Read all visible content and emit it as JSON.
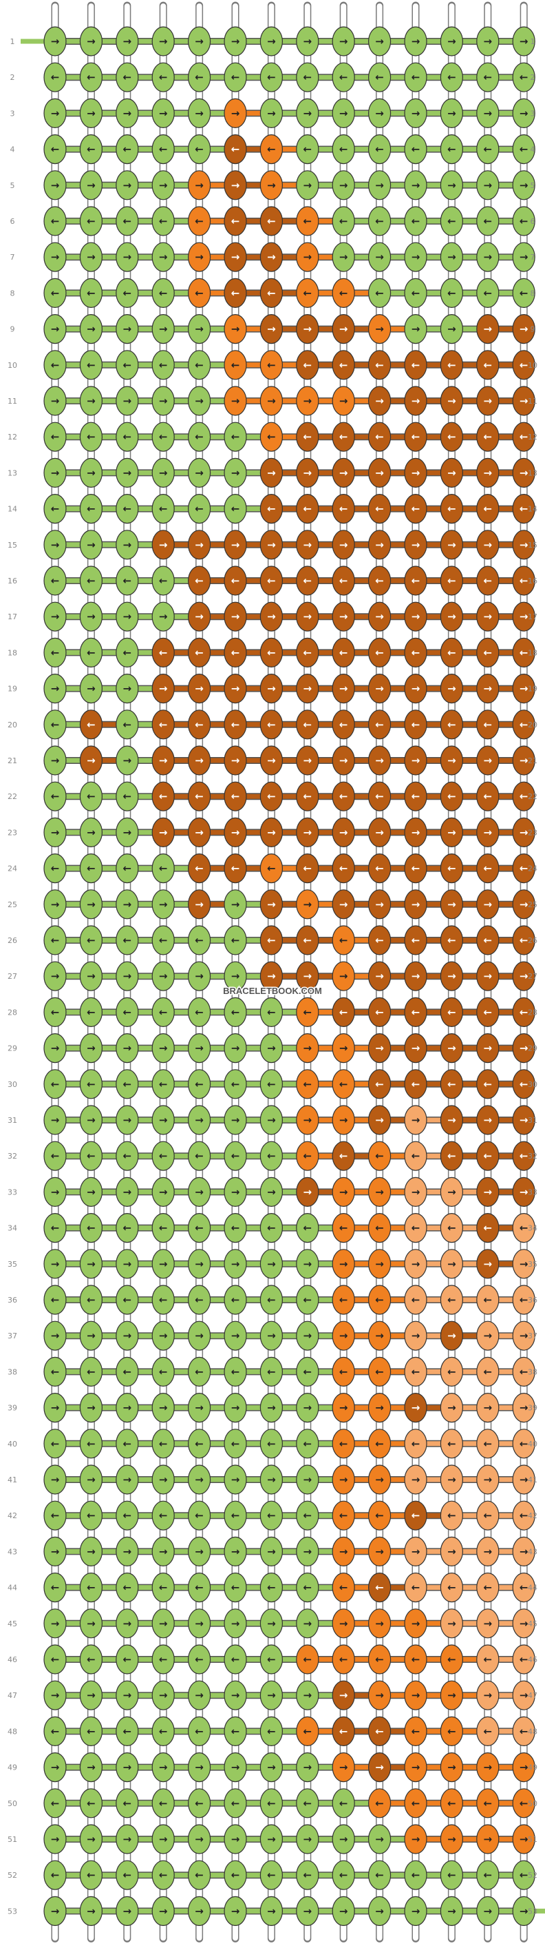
{
  "watermark": "BRACELETBOOK.COM",
  "colors": {
    "A": "#98c860",
    "B": "#f5a86a",
    "C": "#b85c14",
    "D": "#f08020"
  },
  "strand_colors": [
    "A",
    "D",
    "A",
    "A",
    "A",
    "C",
    "A",
    "A",
    "A",
    "A",
    "A",
    "A",
    "A",
    "C"
  ],
  "row_labels": [
    "1",
    "2",
    "3",
    "4",
    "5",
    "6",
    "7",
    "8",
    "9",
    "10",
    "11",
    "12",
    "13",
    "14",
    "15",
    "16",
    "17",
    "18",
    "19",
    "20",
    "21",
    "22",
    "23",
    "24",
    "25",
    "26",
    "27",
    "28",
    "29",
    "30",
    "31",
    "32",
    "33",
    "34",
    "35",
    "36",
    "37",
    "38",
    "39",
    "40",
    "41",
    "42",
    "43",
    "44",
    "45",
    "46",
    "47",
    "48",
    "49",
    "50",
    "51",
    "52",
    "53"
  ],
  "glyphs": {
    "f": "→",
    "b": "←"
  },
  "knot_rows": [
    "AfAfAfAfAfAfAfAfAfAfAfAfAfAf",
    "AbAbAbAbAbAbAbAbAbAbAbAbAbAb",
    "AfAfAfAfAfDfAfAfAfAfAfAfAfAf",
    "AbAbAbAbAbCbDbAbAbAbAbAbAbAb",
    "AfAfAfAfDfCfDfAfAfAfAfAfAfAf",
    "AbAbAbAbDbCbCbDbAbAbAbAbAbAb",
    "AfAfAfAfDfCfCfDfAfAfAfAfAfAf",
    "AbAbAbAbDbCbCbDbDbAbAbAbAbAb",
    "AfAfAfAfAfDfCfCfCfDfAfAfCfCf",
    "AbAbAbAbAbDbDbCbCbCbCbCbCbCb",
    "AfAfAfAfAfDfDfDfDfCfCfCfCfCf",
    "AbAbAbAbAbAbDbCbCbCbCbCbCbCb",
    "AfAfAfAfAfAfCfCfCfCfCfCfCfCf",
    "AbAbAbAbAbAbCbCbCbCbCbCbCbCb",
    "AfAfAfCfCfCfCfCfCfCfCfCfCfCf",
    "AbAbAbAbCbCbCbCbCbCbCbCbCbCb",
    "AfAfAfAfCfCfCfCfCfCfCfCfCfCf",
    "AbAbAbCbCbCbCbCbCbCbCbCbCbCb",
    "AfAfAfCfCfCfCfCfCfCfCfCfCfCf",
    "AbCbAbCbCbCbCbCbCbCbCbCbCbCb",
    "AfCfAfCfCfCfCfCfCfCfCfCfCfCf",
    "AbAbAbCbCbCbCbCbCbCbCbCbCbCb",
    "AfAfAfCfCfCfCfCfCfCfCfCfCfCf",
    "AbAbAbAbCbCbDbCbCbCbCbCbCbCb",
    "AfAfAfAfCfAfCfDfCfCfCfCfCfCf",
    "AbAbAbAbAbAbCbCbDbCbCbCbCbCb",
    "AfAfAfAfAfAfCfCfDfCfCfCfCfCf",
    "AbAbAbAbAbAbAbDbCbCbCbCbCbCb",
    "AfAfAfAfAfAfAfDfDfCfCfCfCfCf",
    "AbAbAbAbAbAbAbDbDbCbCbCbCbCb",
    "AfAfAfAfAfAfAfDfDfCfBfCfCfCf",
    "AbAbAbAbAbAbAbDbCbDbBbCbCbCb",
    "AfAfAfAfAfAfAfCfDfDfBfBfCfCf",
    "AbAbAbAbAbAbAbAbDbDbBbBbCbBb",
    "AfAfAfAfAfAfAfAfDfDfBfBfCfBf",
    "AbAbAbAbAbAbAbAbDbDbBbBbBbBb",
    "AfAfAfAfAfAfAfAfDfDfBfCfBfBf",
    "AbAbAbAbAbAbAbAbDbDbBbBbBbBb",
    "AfAfAfAfAfAfAfAfDfDfCfBfBfBf",
    "AbAbAbAbAbAbAbAbDbDbBbBbBbBb",
    "AfAfAfAfAfAfAfAfDfDfBfBfBfBf",
    "AbAbAbAbAbAbAbAbDbDbCbBbBbBb",
    "AfAfAfAfAfAfAfAfDfDfBfBfBfBf",
    "AbAbAbAbAbAbAbAbDbCbBbBbBbBb",
    "AfAfAfAfAfAfAfAfDfDfDfBfBfBf",
    "AbAbAbAbAbAbAbDbDbDbDbDbBbBb",
    "AfAfAfAfAfAfAfAfCfDfDfDfBfBf",
    "AbAbAbAbAbAbAbDbCbCbDbDbBbBb",
    "AfAfAfAfAfAfAfAfDfCfDfDfDfDf",
    "AbAbAbAbAbAbAbAbAbDbDbDbDbDb",
    "AfAfAfAfAfAfAfAfAfAfDfDfDfDf",
    "AbAbAbAbAbAbAbAbAbAbAbAbAbAb",
    "AfAfAfAfAfAfAfAfAfAfAfAfAfAf"
  ]
}
